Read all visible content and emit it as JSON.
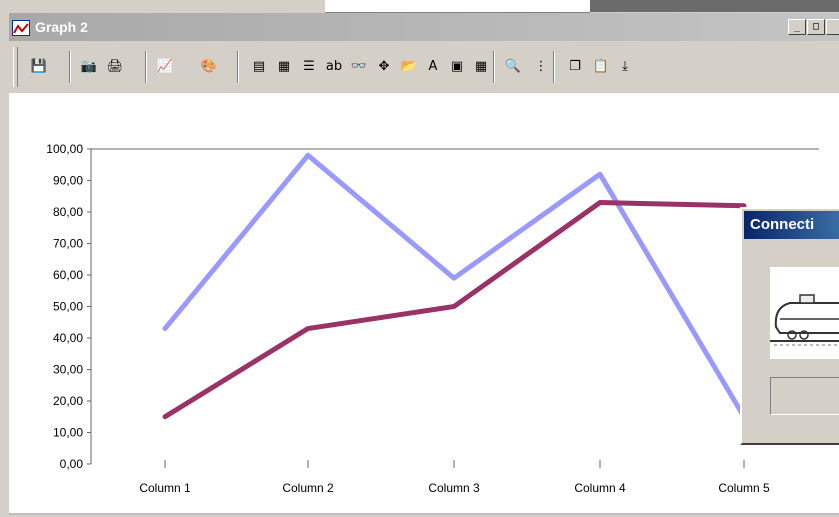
{
  "window": {
    "title": "Graph 2",
    "minimize": "_",
    "maximize": "□"
  },
  "toolbar": {
    "buttons": [
      {
        "name": "save-icon",
        "glyph": "💾"
      },
      {
        "name": "camera-icon",
        "glyph": "📷"
      },
      {
        "name": "print-icon",
        "glyph": "🖨"
      },
      {
        "name": "chart-type-icon",
        "glyph": "📈"
      },
      {
        "name": "fill-color-icon",
        "glyph": "🎨"
      },
      {
        "name": "data-sheet-icon",
        "glyph": "▤"
      },
      {
        "name": "table-icon",
        "glyph": "▦"
      },
      {
        "name": "legend-icon",
        "glyph": "☰"
      },
      {
        "name": "label-icon",
        "glyph": "ab"
      },
      {
        "name": "glasses-icon",
        "glyph": "👓"
      },
      {
        "name": "move-icon",
        "glyph": "✥"
      },
      {
        "name": "open-icon",
        "glyph": "📂"
      },
      {
        "name": "font-icon",
        "glyph": "A"
      },
      {
        "name": "image-icon",
        "glyph": "▣"
      },
      {
        "name": "grid-icon",
        "glyph": "▦"
      },
      {
        "name": "zoom-icon",
        "glyph": "🔍"
      },
      {
        "name": "scroll-icon",
        "glyph": "⋮"
      },
      {
        "name": "copy-icon",
        "glyph": "❐"
      },
      {
        "name": "paste-icon",
        "glyph": "📋"
      },
      {
        "name": "export-icon",
        "glyph": "⤓"
      }
    ]
  },
  "chart_data": {
    "type": "line",
    "categories": [
      "Column 1",
      "Column 2",
      "Column 3",
      "Column 4",
      "Column 5"
    ],
    "series": [
      {
        "color": "#9999ff",
        "values": [
          43,
          98,
          59,
          92,
          15
        ]
      },
      {
        "color": "#993366",
        "values": [
          15,
          43,
          50,
          83,
          82
        ]
      }
    ],
    "yticks": [
      "0,00",
      "10,00",
      "20,00",
      "30,00",
      "40,00",
      "50,00",
      "60,00",
      "70,00",
      "80,00",
      "90,00",
      "100,00"
    ],
    "ylim": [
      0,
      100
    ],
    "grid": false
  },
  "dialog": {
    "title": "Connecti"
  }
}
